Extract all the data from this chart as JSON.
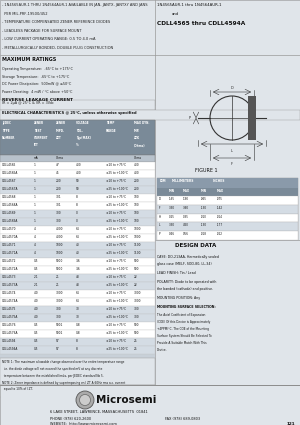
{
  "title_left_lines": [
    "- 1N4565AUR-1 THRU 1N4564AUR-1 AVAILABLE IN JAN, JANTX, JANTXY AND JANS",
    "  PER MIL-PRF-19500/452",
    "- TEMPERATURE COMPENSATED ZENER REFERENCE DIODES",
    "- LEADLESS PACKAGE FOR SURFACE MOUNT",
    "- LOW CURRENT OPERATING RANGE: 0.5 TO 4.0 mA",
    "- METALLURGICALLY BONDED, DOUBLE PLUG CONSTRUCTION"
  ],
  "title_right_line1": "1N4565AUR-1 thru 1N4564AUR-1",
  "title_right_line2": "and",
  "title_right_line3": "CDLL4565 thru CDLL4594A",
  "max_ratings_title": "MAXIMUM RATINGS",
  "max_ratings": [
    "Operating Temperature:  -65°C to +175°C",
    "Storage Temperature:  -65°C to +175°C",
    "DC Power Dissipation:  500mW @ ≤50°C",
    "Power Derating:  4 mW / °C above +50°C"
  ],
  "reverse_title": "REVERSE LEAKAGE CURRENT",
  "reverse_text": "IR = 2µA @ 25°C & VR = 3Vdc",
  "elec_title": "ELECTRICAL CHARACTERISTICS @ 25°C, unless otherwise specified",
  "table_data": [
    [
      "CDLL4565",
      "1",
      "47",
      "400",
      "±10 to +75°C",
      "400"
    ],
    [
      "CDLL4565A",
      "1",
      "45",
      "400",
      "±25 to +100°C",
      "400"
    ],
    [
      "CDLL4567",
      "1",
      "200",
      "50",
      "±10 to +75°C",
      "200"
    ],
    [
      "CDLL4567A",
      "1",
      "200",
      "50",
      "±25 to +100°C",
      "200"
    ],
    [
      "CDLL4568",
      "1",
      "301",
      "8",
      "±10 to +75°C",
      "100"
    ],
    [
      "CDLL4568A",
      "1",
      "301",
      "8",
      "±25 to +100°C",
      "100"
    ],
    [
      "CDLL4569",
      "1",
      "300",
      "0",
      "±10 to +75°C",
      "100"
    ],
    [
      "CDLL4569A",
      "1",
      "300",
      "0",
      "±25 to +100°C",
      "100"
    ],
    [
      "CDLL4570",
      "4",
      "4000",
      "64",
      "±10 to +75°C",
      "1000"
    ],
    [
      "CDLL4570A",
      "4",
      "4000",
      "64",
      "±25 to +100°C",
      "1000"
    ],
    [
      "CDLL4571",
      "4",
      "1000",
      "40",
      "±10 to +75°C",
      "1100"
    ],
    [
      "CDLL4571A",
      "4",
      "1000",
      "40",
      "±25 to +100°C",
      "1100"
    ],
    [
      "CDLL4572",
      "0.5",
      "5000",
      "3.6",
      "±10 to +75°C",
      "500"
    ],
    [
      "CDLL4572A",
      "0.5",
      "5000",
      "3.6",
      "±25 to +100°C",
      "500"
    ],
    [
      "CDLL4573",
      "2.1",
      "21",
      "48",
      "±10 to +75°C",
      "22"
    ],
    [
      "CDLL4573A",
      "2.1",
      "21",
      "48",
      "±25 to +100°C",
      "22"
    ],
    [
      "CDLL4574",
      "4.0",
      "3000",
      "64",
      "±10 to +75°C",
      "3000"
    ],
    [
      "CDLL4574A",
      "4.0",
      "3000",
      "64",
      "±25 to +100°C",
      "3000"
    ],
    [
      "CDLL4575",
      "4.0",
      "300",
      "30",
      "±10 to +75°C",
      "300"
    ],
    [
      "CDLL4575A",
      "4.0",
      "300",
      "30",
      "±25 to +100°C",
      "300"
    ],
    [
      "CDLL4576",
      "0.5",
      "5001",
      "0.8",
      "±10 to +75°C",
      "500"
    ],
    [
      "CDLL4576A",
      "0.5",
      "5001",
      "0.8",
      "±25 to +100°C",
      "500"
    ],
    [
      "CDLL4594",
      "0.5",
      "57",
      "8",
      "±10 to +75°C",
      "25"
    ],
    [
      "CDLL4594A",
      "0.5",
      "57",
      "8",
      "±25 to +100°C",
      "25"
    ]
  ],
  "note1a": "NOTE 1: The maximum allowable change observed over the entire temperature range",
  "note1b": "  i.e. the diode voltage will not exceed the specified mV at any discrete",
  "note1c": "  temperature between the established limits, per JEDEC standard No 5.",
  "note2a": "NOTE 2: Zener impedance is defined by superimposing on I ZT A 60Hz rms a.c. current",
  "note2b": "  equal to 10% of I ZT.",
  "dim_data": [
    [
      "D",
      "1.65",
      "1.90",
      ".065",
      ".075"
    ],
    [
      "F",
      "3.30",
      "3.60",
      ".130",
      ".142"
    ],
    [
      "H",
      "0.25",
      "0.35",
      ".010",
      ".014"
    ],
    [
      "L",
      "3.30",
      "4.50",
      ".130",
      ".177"
    ],
    [
      "P",
      "0.46",
      "0.56",
      ".018",
      ".022"
    ]
  ],
  "company": "Microsemi",
  "address": "6 LAKE STREET, LAWRENCE, MASSACHUSETTS  01841",
  "phone": "PHONE (978) 620-2600",
  "fax": "FAX (978) 689-0803",
  "website": "WEBSITE:  http://www.microsemi.com",
  "page_num": "121",
  "bg_color": "#c8d0d8",
  "white": "#ffffff",
  "light_gray": "#e0e5ea",
  "mid_gray": "#b8c2cc",
  "dark_gray": "#8a9aaa",
  "header_bg": "#7a8a98",
  "row_alt": "#d4dce4"
}
